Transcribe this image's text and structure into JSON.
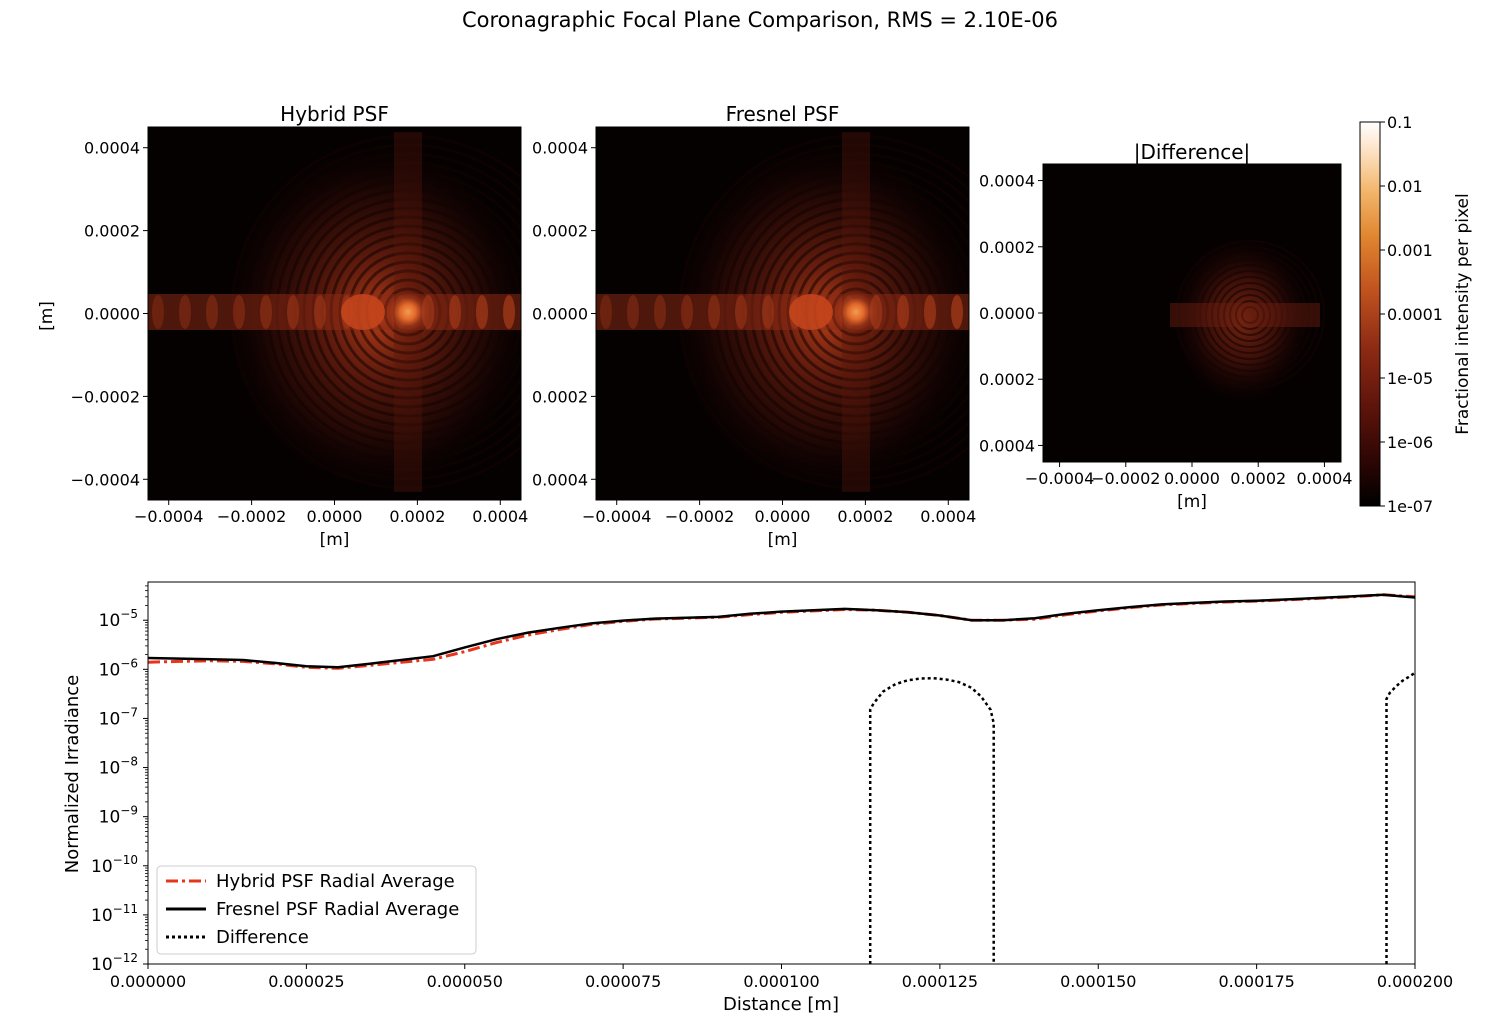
{
  "suptitle": "Coronagraphic Focal Plane Comparison, RMS = 2.10E-06",
  "colors": {
    "hybrid": "#e8341c",
    "fresnel": "#000000",
    "difference": "#000000",
    "image_bg": "#060101",
    "colormap": [
      "#000000",
      "#2e0604",
      "#5e140b",
      "#8f2c14",
      "#c0521e",
      "#e0852f",
      "#f3b66b",
      "#fde4c8",
      "#ffffff"
    ]
  },
  "chart_data": [
    {
      "type": "heatmap",
      "title": "Hybrid PSF",
      "xlabel": "[m]",
      "ylabel": "[m]",
      "xlim": [
        -0.00045,
        0.00045
      ],
      "ylim": [
        -0.00045,
        0.00045
      ],
      "xticks": [
        "−0.0004",
        "−0.0002",
        "0.0000",
        "0.0002",
        "0.0004"
      ],
      "yticks": [
        "0.0004",
        "0.0002",
        "0.0000",
        "−0.0002",
        "−0.0004"
      ],
      "peak_position": [
        0.00018,
        0.0
      ],
      "colorscale": "log"
    },
    {
      "type": "heatmap",
      "title": "Fresnel PSF",
      "xlabel": "[m]",
      "xlim": [
        -0.00045,
        0.00045
      ],
      "ylim": [
        -0.00045,
        0.00045
      ],
      "xticks": [
        "−0.0004",
        "−0.0002",
        "0.0000",
        "0.0002",
        "0.0004"
      ],
      "yticks": [
        "0.0004",
        "0.0002",
        "0.0000",
        "0.0002",
        "0.0004"
      ],
      "peak_position": [
        0.00018,
        0.0
      ],
      "colorscale": "log"
    },
    {
      "type": "heatmap",
      "title": "|Difference|",
      "xlabel": "[m]",
      "xlim": [
        -0.00045,
        0.00045
      ],
      "ylim": [
        -0.00045,
        0.00045
      ],
      "xticks": [
        "−0.0004",
        "−0.0002",
        "0.0000",
        "0.0002",
        "0.0004"
      ],
      "yticks": [
        "0.0004",
        "0.0002",
        "0.0000",
        "0.0002",
        "0.0004"
      ],
      "peak_position": [
        0.00018,
        0.0
      ],
      "colorscale": "log"
    },
    {
      "type": "colorbar",
      "label": "Fractional intensity per pixel",
      "scale": "log",
      "range": [
        1e-07,
        0.1
      ],
      "ticks": [
        {
          "value": 0.1,
          "label": "0.1"
        },
        {
          "value": 0.01,
          "label": "0.01"
        },
        {
          "value": 0.001,
          "label": "0.001"
        },
        {
          "value": 0.0001,
          "label": "0.0001"
        },
        {
          "value": 1e-05,
          "label": "1e-05"
        },
        {
          "value": 1e-06,
          "label": "1e-06"
        },
        {
          "value": 1e-07,
          "label": "1e-07"
        }
      ]
    },
    {
      "type": "line",
      "xlabel": "Distance [m]",
      "ylabel": "Normalized Irradiance",
      "yscale": "log",
      "xlim": [
        0,
        0.0002
      ],
      "ylim": [
        1e-12,
        6e-05
      ],
      "xticks": [
        {
          "value": 0,
          "label": "0.000000"
        },
        {
          "value": 2.5e-05,
          "label": "0.000025"
        },
        {
          "value": 5e-05,
          "label": "0.000050"
        },
        {
          "value": 7.5e-05,
          "label": "0.000075"
        },
        {
          "value": 0.0001,
          "label": "0.000100"
        },
        {
          "value": 0.000125,
          "label": "0.000125"
        },
        {
          "value": 0.00015,
          "label": "0.000150"
        },
        {
          "value": 0.000175,
          "label": "0.000175"
        },
        {
          "value": 0.0002,
          "label": "0.000200"
        }
      ],
      "yticks": [
        {
          "exp": -5,
          "base": "10",
          "sup": "−5"
        },
        {
          "exp": -6,
          "base": "10",
          "sup": "−6"
        },
        {
          "exp": -7,
          "base": "10",
          "sup": "−7"
        },
        {
          "exp": -8,
          "base": "10",
          "sup": "−8"
        },
        {
          "exp": -9,
          "base": "10",
          "sup": "−9"
        },
        {
          "exp": -10,
          "base": "10",
          "sup": "−10"
        },
        {
          "exp": -11,
          "base": "10",
          "sup": "−11"
        },
        {
          "exp": -12,
          "base": "10",
          "sup": "−12"
        }
      ],
      "legend_position": "lower-left",
      "series": [
        {
          "name": "Hybrid PSF Radial Average",
          "style": "dashdot",
          "color": "#e8341c",
          "x": [
            0,
            5e-06,
            1e-05,
            1.5e-05,
            2e-05,
            2.5e-05,
            3e-05,
            3.5e-05,
            4e-05,
            4.5e-05,
            5e-05,
            5.5e-05,
            6e-05,
            6.5e-05,
            7e-05,
            7.5e-05,
            8e-05,
            8.5e-05,
            9e-05,
            9.5e-05,
            0.0001,
            0.000105,
            0.00011,
            0.000115,
            0.00012,
            0.000125,
            0.00013,
            0.000135,
            0.00014,
            0.000145,
            0.00015,
            0.000155,
            0.00016,
            0.000165,
            0.00017,
            0.000175,
            0.00018,
            0.000185,
            0.00019,
            0.000195,
            0.0002
          ],
          "y": [
            1.4e-06,
            1.45e-06,
            1.5e-06,
            1.45e-06,
            1.3e-06,
            1.1e-06,
            1.05e-06,
            1.2e-06,
            1.4e-06,
            1.6e-06,
            2.3e-06,
            3.5e-06,
            5e-06,
            6.5e-06,
            8.2e-06,
            9.5e-06,
            1.06e-05,
            1.1e-05,
            1.15e-05,
            1.3e-05,
            1.45e-05,
            1.55e-05,
            1.65e-05,
            1.6e-05,
            1.45e-05,
            1.25e-05,
            1e-05,
            1e-05,
            1.05e-05,
            1.3e-05,
            1.55e-05,
            1.8e-05,
            2.05e-05,
            2.2e-05,
            2.35e-05,
            2.45e-05,
            2.6e-05,
            2.8e-05,
            3e-05,
            3.3e-05,
            3e-05
          ]
        },
        {
          "name": "Fresnel PSF Radial Average",
          "style": "solid",
          "color": "#000000",
          "x": [
            0,
            5e-06,
            1e-05,
            1.5e-05,
            2e-05,
            2.5e-05,
            3e-05,
            3.5e-05,
            4e-05,
            4.5e-05,
            5e-05,
            5.5e-05,
            6e-05,
            6.5e-05,
            7e-05,
            7.5e-05,
            8e-05,
            8.5e-05,
            9e-05,
            9.5e-05,
            0.0001,
            0.000105,
            0.00011,
            0.000115,
            0.00012,
            0.000125,
            0.00013,
            0.000135,
            0.00014,
            0.000145,
            0.00015,
            0.000155,
            0.00016,
            0.000165,
            0.00017,
            0.000175,
            0.00018,
            0.000185,
            0.00019,
            0.000195,
            0.0002
          ],
          "y": [
            1.7e-06,
            1.65e-06,
            1.6e-06,
            1.55e-06,
            1.35e-06,
            1.15e-06,
            1.1e-06,
            1.3e-06,
            1.55e-06,
            1.85e-06,
            2.8e-06,
            4.1e-06,
            5.6e-06,
            7e-06,
            8.6e-06,
            9.8e-06,
            1.08e-05,
            1.12e-05,
            1.17e-05,
            1.35e-05,
            1.5e-05,
            1.6e-05,
            1.7e-05,
            1.6e-05,
            1.45e-05,
            1.25e-05,
            1e-05,
            1e-05,
            1.1e-05,
            1.35e-05,
            1.6e-05,
            1.85e-05,
            2.1e-05,
            2.25e-05,
            2.4e-05,
            2.5e-05,
            2.65e-05,
            2.85e-05,
            3.05e-05,
            3.3e-05,
            2.9e-05
          ]
        },
        {
          "name": "Difference",
          "style": "dotted",
          "color": "#000000",
          "segments": [
            {
              "x": [
                0.000114,
                0.000114,
                0.0001145,
                0.000116,
                0.000118,
                0.00012,
                0.000122,
                0.000124,
                0.000126,
                0.000128,
                0.00013,
                0.0001315,
                0.000133,
                0.0001335,
                0.0001335
              ],
              "y": [
                1e-12,
                1.5e-07,
                2e-07,
                3.5e-07,
                5e-07,
                6e-07,
                6.5e-07,
                6.6e-07,
                6.2e-07,
                5.5e-07,
                4.2e-07,
                2.8e-07,
                1.5e-07,
                8e-08,
                1e-12
              ]
            },
            {
              "x": [
                0.0001955,
                0.0001955,
                0.000196,
                0.000197,
                0.000198,
                0.000199,
                0.0002
              ],
              "y": [
                1e-12,
                2.5e-07,
                3.3e-07,
                4.5e-07,
                5.8e-07,
                7e-07,
                8.5e-07
              ]
            }
          ]
        }
      ]
    }
  ]
}
